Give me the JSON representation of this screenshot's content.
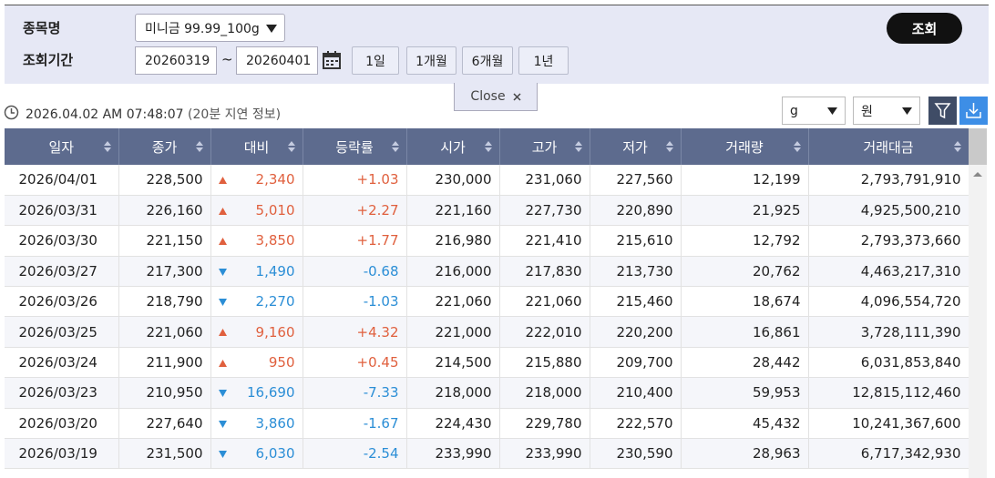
{
  "filter": {
    "stock_label": "종목명",
    "stock_value": "미니금 99.99_100g",
    "period_label": "조회기간",
    "start_date": "20260319",
    "separator": "~",
    "end_date": "20260401",
    "period_buttons": [
      "1일",
      "1개월",
      "6개월",
      "1년"
    ],
    "search_button": "조회"
  },
  "close_button": "Close",
  "timestamp": "2026.04.02 AM 07:48:07",
  "delay_note": "(20분 지연 정보)",
  "unit_select": "g",
  "currency_select": "원",
  "table": {
    "headers": [
      "일자",
      "종가",
      "대비",
      "등락률",
      "시가",
      "고가",
      "저가",
      "거래량",
      "거래대금"
    ],
    "rows": [
      [
        "2026/04/01",
        "228,500",
        "2,340",
        "+1.03",
        "230,000",
        "231,060",
        "227,560",
        "12,199",
        "2,793,791,910"
      ],
      [
        "2026/03/31",
        "226,160",
        "5,010",
        "+2.27",
        "221,160",
        "227,730",
        "220,890",
        "21,925",
        "4,925,500,210"
      ],
      [
        "2026/03/30",
        "221,150",
        "3,850",
        "+1.77",
        "216,980",
        "221,410",
        "215,610",
        "12,792",
        "2,793,373,660"
      ],
      [
        "2026/03/27",
        "217,300",
        "1,490",
        "-0.68",
        "216,000",
        "217,830",
        "213,730",
        "20,762",
        "4,463,217,310"
      ],
      [
        "2026/03/26",
        "218,790",
        "2,270",
        "-1.03",
        "221,060",
        "221,060",
        "215,460",
        "18,674",
        "4,096,554,720"
      ],
      [
        "2026/03/25",
        "221,060",
        "9,160",
        "+4.32",
        "221,000",
        "222,010",
        "220,200",
        "16,861",
        "3,728,111,390"
      ],
      [
        "2026/03/24",
        "211,900",
        "950",
        "+0.45",
        "214,500",
        "215,880",
        "209,700",
        "28,442",
        "6,031,853,840"
      ],
      [
        "2026/03/23",
        "210,950",
        "16,690",
        "-7.33",
        "218,000",
        "218,000",
        "210,400",
        "59,953",
        "12,815,112,460"
      ],
      [
        "2026/03/20",
        "227,640",
        "3,860",
        "-1.67",
        "224,430",
        "229,780",
        "222,570",
        "45,432",
        "10,241,367,600"
      ],
      [
        "2026/03/19",
        "231,500",
        "6,030",
        "-2.54",
        "233,990",
        "233,990",
        "230,590",
        "28,963",
        "6,717,342,930"
      ]
    ]
  }
}
